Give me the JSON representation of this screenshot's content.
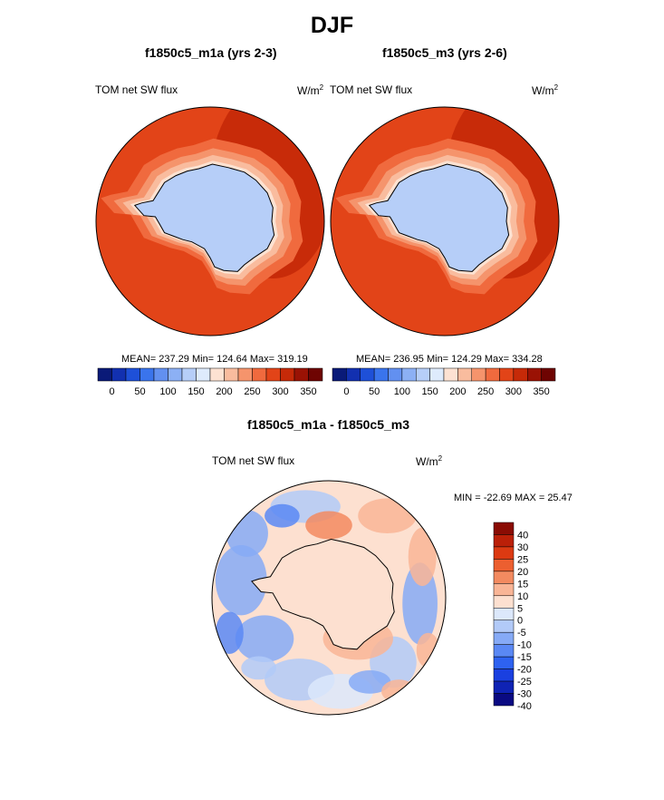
{
  "chart_data": {
    "title": "DJF",
    "panels": [
      {
        "type": "heatmap",
        "projection": "south-polar-stereographic",
        "title": "f1850c5_m1a (yrs 2-3)",
        "variable": "TOM net SW flux",
        "units": "W/m",
        "units_exp": "2",
        "stats": {
          "mean": 237.29,
          "min": 124.64,
          "max": 319.19
        },
        "stats_text": "MEAN= 237.29  Min= 124.64  Max= 319.19",
        "colorbar": {
          "orientation": "horizontal",
          "levels": [
            0,
            25,
            50,
            75,
            100,
            125,
            150,
            175,
            200,
            225,
            250,
            275,
            300,
            325,
            350
          ],
          "tick_labels": [
            "0",
            "50",
            "100",
            "150",
            "200",
            "250",
            "300",
            "350"
          ]
        }
      },
      {
        "type": "heatmap",
        "projection": "south-polar-stereographic",
        "title": "f1850c5_m3 (yrs 2-6)",
        "variable": "TOM net SW flux",
        "units": "W/m",
        "units_exp": "2",
        "stats": {
          "mean": 236.95,
          "min": 124.29,
          "max": 334.28
        },
        "stats_text": "MEAN= 236.95  Min= 124.29  Max= 334.28",
        "colorbar": {
          "orientation": "horizontal",
          "levels": [
            0,
            25,
            50,
            75,
            100,
            125,
            150,
            175,
            200,
            225,
            250,
            275,
            300,
            325,
            350
          ],
          "tick_labels": [
            "0",
            "50",
            "100",
            "150",
            "200",
            "250",
            "300",
            "350"
          ]
        }
      },
      {
        "type": "heatmap",
        "projection": "south-polar-stereographic",
        "title": "f1850c5_m1a - f1850c5_m3",
        "variable": "TOM net SW flux",
        "units": "W/m",
        "units_exp": "2",
        "stats": {
          "min": -22.69,
          "max": 25.47
        },
        "stats_text": "MIN = -22.69 MAX =  25.47",
        "colorbar": {
          "orientation": "vertical",
          "levels": [
            -40,
            -30,
            -25,
            -20,
            -15,
            -10,
            -5,
            0,
            5,
            10,
            15,
            20,
            25,
            30,
            40
          ],
          "tick_labels": [
            "40",
            "30",
            "25",
            "20",
            "15",
            "10",
            "5",
            "0",
            "-5",
            "-10",
            "-15",
            "-20",
            "-25",
            "-30",
            "-40"
          ]
        }
      }
    ],
    "palettes": {
      "absolute": [
        "#0a1a78",
        "#1230b0",
        "#1e50d8",
        "#3a74ec",
        "#6290f0",
        "#8cb0f4",
        "#b6cef8",
        "#deebfc",
        "#fde2d2",
        "#f9bc9e",
        "#f5946c",
        "#f06a3e",
        "#e24418",
        "#c62a08",
        "#9a1204",
        "#6e0402"
      ],
      "difference": [
        "#0a0a82",
        "#0f23b4",
        "#1a40e0",
        "#2e62f0",
        "#5a88f4",
        "#86aaf6",
        "#b2caf8",
        "#dce8fb",
        "#fde0d0",
        "#f9b596",
        "#f38a60",
        "#ec5f30",
        "#dc3a12",
        "#bb2008",
        "#8a0c04"
      ]
    }
  }
}
